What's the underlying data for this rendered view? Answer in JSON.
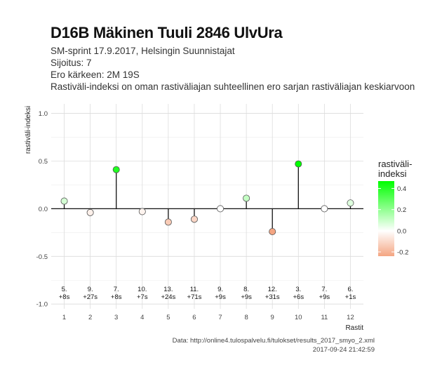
{
  "header": {
    "title": "D16B Mäkinen Tuuli 2846 UlvUra",
    "subtitle_lines": [
      "SM-sprint 17.9.2017, Helsingin Suunnistajat",
      "Sijoitus: 7",
      "Ero kärkeen: 2M 19S",
      "Rastiväli-indeksi on oman rastiväliajan suhteellinen ero sarjan rastiväliajan keskiarvoon"
    ]
  },
  "caption": {
    "line1": "Data: http://online4.tulospalvelu.fi/tulokset/results_2017_smyo_2.xml",
    "line2": "2017-09-24 21:42:59"
  },
  "chart_data": {
    "type": "lollipop",
    "xlabel": "Rastit",
    "ylabel": "rastiväli-indeksi",
    "x": [
      1,
      2,
      3,
      4,
      5,
      6,
      7,
      8,
      9,
      10,
      11,
      12
    ],
    "values": [
      0.08,
      -0.04,
      0.41,
      -0.03,
      -0.14,
      -0.11,
      0.0,
      0.11,
      -0.24,
      0.47,
      0.0,
      0.06
    ],
    "rank_labels": [
      "5.",
      "9.",
      "7.",
      "10.",
      "13.",
      "11.",
      "9.",
      "8.",
      "12.",
      "3.",
      "7.",
      "6."
    ],
    "time_labels": [
      "+8s",
      "+27s",
      "+8s",
      "+7s",
      "+24s",
      "+71s",
      "+9s",
      "+9s",
      "+31s",
      "+6s",
      "+9s",
      "+1s"
    ],
    "ylim": [
      -1.05,
      1.1
    ],
    "yticks": [
      1.0,
      0.5,
      0.0,
      -0.5,
      -1.0
    ],
    "ytick_labels": [
      "1.0",
      "0.5",
      "0.0",
      "-0.5",
      "-1.0"
    ],
    "xticks": [
      1,
      2,
      3,
      4,
      5,
      6,
      7,
      8,
      9,
      10,
      11,
      12
    ],
    "grid": true,
    "legend": {
      "title_line1": "rastiväli-",
      "title_line2": "indeksi",
      "placement": "right",
      "ticks": [
        0.4,
        0.2,
        0.0,
        -0.2
      ],
      "tick_labels": [
        "0.4",
        "0.2",
        "0.0",
        "-0.2"
      ],
      "range": [
        -0.24,
        0.47
      ],
      "color_low": "#f4a582",
      "color_mid": "#ffffff",
      "color_high": "#00ff00"
    }
  }
}
